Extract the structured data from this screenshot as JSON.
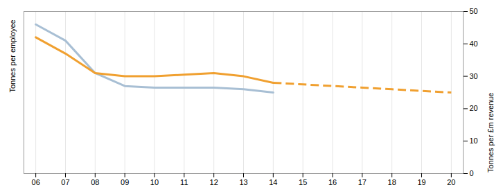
{
  "chart_data": {
    "type": "line",
    "ylabel": "Tonnes per employee",
    "y2label": "Tonnes per £m revenue",
    "x": [
      6,
      7,
      8,
      9,
      10,
      11,
      12,
      13,
      14,
      15,
      16,
      17,
      18,
      19,
      20
    ],
    "xlim": [
      5.6,
      20.4
    ],
    "xticks": [
      {
        "value": 6,
        "label": "06"
      },
      {
        "value": 7,
        "label": "07"
      },
      {
        "value": 8,
        "label": "08"
      },
      {
        "value": 9,
        "label": "09"
      },
      10,
      11,
      12,
      13,
      14,
      15,
      16,
      17,
      18,
      19,
      20
    ],
    "ylim": [
      0,
      50
    ],
    "y2lim": [
      0,
      50
    ],
    "y2ticks": [
      0,
      10,
      20,
      30,
      40,
      50
    ],
    "grid": "x",
    "series": [
      {
        "color": "#a8bfd4",
        "line_style": "solid",
        "values": [
          46,
          41,
          31,
          27,
          26.5,
          26.5,
          26.5,
          26,
          25,
          null,
          null,
          null,
          null,
          null,
          null
        ]
      },
      {
        "color": "#f0a030",
        "line_style": "solid",
        "values": [
          42,
          37,
          31,
          30,
          30,
          30.5,
          31,
          30,
          28,
          null,
          null,
          null,
          null,
          null,
          null
        ]
      },
      {
        "color": "#f0a030",
        "line_style": "dashed",
        "values": [
          null,
          null,
          null,
          null,
          null,
          null,
          null,
          null,
          28,
          27.5,
          27,
          26.5,
          26,
          25.5,
          25
        ]
      }
    ]
  }
}
